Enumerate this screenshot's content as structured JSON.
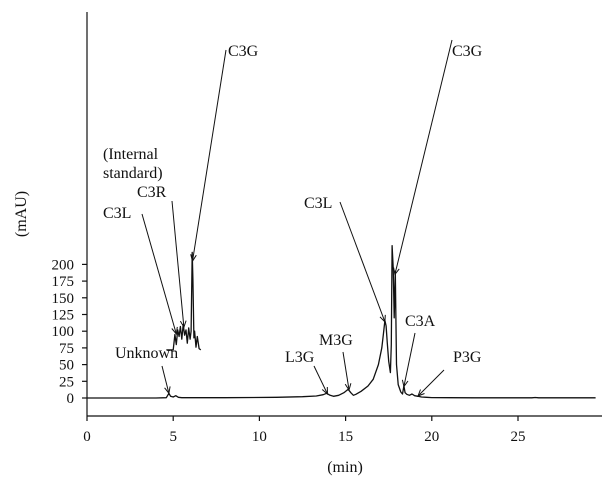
{
  "chart_data": {
    "type": "line",
    "xlabel": "(min)",
    "ylabel": "(mAU)",
    "xlim": [
      0,
      29.5
    ],
    "ylim": [
      -10,
      230
    ],
    "xticks": [
      0,
      5,
      10,
      15,
      20,
      25
    ],
    "yticks": [
      0,
      25,
      50,
      75,
      100,
      125,
      150,
      175,
      200
    ],
    "grid": false,
    "legend": "none",
    "series": [
      {
        "x": [
          0,
          4.0,
          4.6,
          4.75,
          4.85,
          5.0,
          5.15,
          5.3,
          5.5,
          8.0,
          11.0,
          12.5,
          13.3,
          13.7,
          13.9,
          14.1,
          14.3,
          14.6,
          14.9,
          15.15,
          15.3,
          15.45,
          15.6,
          15.9,
          16.3,
          16.6,
          16.9,
          17.1,
          17.2,
          17.28,
          17.35,
          17.42,
          17.5,
          17.6,
          17.65,
          17.7,
          17.76,
          17.82,
          17.88,
          17.95,
          18.05,
          18.2,
          18.3,
          18.38,
          18.45,
          18.55,
          18.7,
          18.85,
          19.0,
          19.2,
          19.4,
          19.7,
          20.0,
          21.0,
          22.5,
          25.8,
          26.0,
          26.2,
          29.5
        ],
        "y": [
          0,
          0,
          0.5,
          7,
          2.5,
          1.5,
          3.5,
          1,
          0.5,
          0.5,
          1,
          2,
          3,
          5,
          7,
          4,
          2.5,
          4,
          8,
          13,
          8,
          4,
          5.5,
          10,
          18,
          28,
          50,
          75,
          97,
          116,
          108,
          82,
          55,
          38,
          80,
          228,
          195,
          120,
          190,
          50,
          20,
          9,
          6,
          18,
          8,
          5.5,
          4,
          6,
          3.5,
          2.5,
          1.5,
          1,
          0.6,
          0.4,
          0.3,
          0.3,
          0.8,
          0.3,
          0.3
        ]
      },
      {
        "x": [
          4.6,
          5.0,
          5.1,
          5.18,
          5.26,
          5.34,
          5.42,
          5.5,
          5.58,
          5.66,
          5.74,
          5.82,
          5.9,
          5.98,
          6.04,
          6.1,
          6.14,
          6.2,
          6.24,
          6.32,
          6.4,
          6.5,
          6.6
        ],
        "y": [
          72,
          72,
          95,
          80,
          102,
          92,
          107,
          88,
          110,
          94,
          102,
          82,
          105,
          88,
          100,
          218,
          178,
          90,
          100,
          76,
          92,
          74,
          72
        ]
      }
    ],
    "annotations": [
      {
        "text": "Unknown",
        "at": [
          4.75,
          7
        ]
      },
      {
        "text": "(Internal",
        "at": null
      },
      {
        "text": "standard)",
        "at": null
      },
      {
        "text": "C3R",
        "at": [
          5.62,
          106
        ]
      },
      {
        "text": "C3L",
        "at": [
          5.18,
          96
        ]
      },
      {
        "text": "C3G",
        "at": [
          6.12,
          205
        ]
      },
      {
        "text": "L3G",
        "at": [
          13.95,
          6
        ]
      },
      {
        "text": "M3G",
        "at": [
          15.2,
          12
        ]
      },
      {
        "text": "C3L",
        "at": [
          17.28,
          114
        ]
      },
      {
        "text": "C3G",
        "at": [
          17.86,
          185
        ]
      },
      {
        "text": "C3A",
        "at": [
          18.38,
          17
        ]
      },
      {
        "text": "P3G",
        "at": [
          19.2,
          3
        ]
      }
    ]
  }
}
